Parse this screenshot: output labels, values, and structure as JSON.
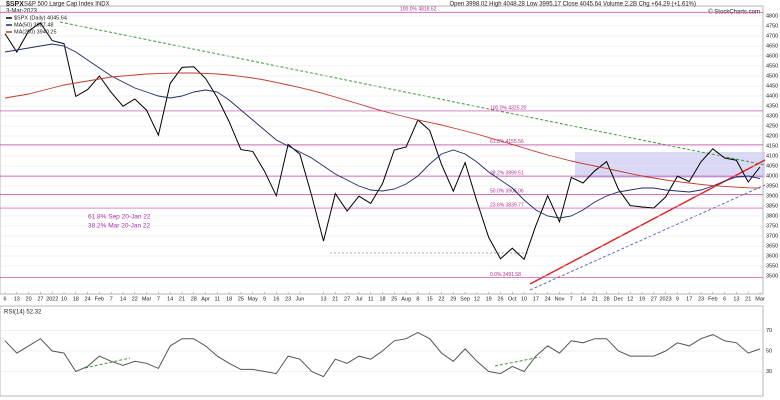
{
  "header": {
    "symbol": "$SPX",
    "name": "S&P 500 Large Cap Index INDX",
    "date": "3-Mar-2023",
    "quote": "Open 3998.02  High 4048.28  Low 3995.17  Close 4045.64  Volume 2.2B  Chg +64.29 (+1.61%)",
    "source": "© StockCharts.com"
  },
  "chart_data": [
    {
      "type": "line",
      "categories": [
        "6",
        "13",
        "20",
        "27",
        "2022",
        "10",
        "18",
        "24",
        "Feb",
        "7",
        "14",
        "22",
        "Mar",
        "7",
        "14",
        "21",
        "28",
        "Apr",
        "11",
        "18",
        "25",
        "May",
        "9",
        "16",
        "23",
        "Jun",
        null,
        "13",
        "21",
        "27",
        "Jul",
        "11",
        "18",
        "25",
        "Aug",
        "8",
        "15",
        "22",
        "29",
        "Sep",
        "12",
        "19",
        "26",
        "Oct",
        "10",
        "17",
        "24",
        "Nov",
        "7",
        "14",
        "21",
        "28",
        "Dec",
        "12",
        "19",
        "27",
        "2023",
        "9",
        "17",
        "23",
        "Feb",
        "6",
        "13",
        "21",
        "Mar"
      ],
      "series": [
        {
          "name": "$SPX (Daily) 4045.64",
          "color": "#000000",
          "values": [
            4712,
            4620,
            4725,
            4766,
            4677,
            4662,
            4398,
            4432,
            4500,
            4418,
            4349,
            4385,
            4329,
            4204,
            4463,
            4543,
            4546,
            4488,
            4392,
            4272,
            4132,
            4123,
            4024,
            3901,
            4158,
            4109,
            3901,
            3675,
            3912,
            3825,
            3899,
            3863,
            3962,
            4130,
            4145,
            4280,
            4228,
            4058,
            3924,
            4067,
            3873,
            3693,
            3586,
            3639,
            3583,
            3753,
            3901,
            3771,
            3993,
            3965,
            4026,
            4072,
            3934,
            3852,
            3845,
            3840,
            3895,
            3999,
            3972,
            4071,
            4136,
            4090,
            4079,
            3970,
            4045
          ]
        },
        {
          "name": "MA(50) 3987.48",
          "color": "#1f2a6b",
          "values": [
            4620,
            4630,
            4640,
            4650,
            4660,
            4650,
            4620,
            4580,
            4540,
            4500,
            4470,
            4440,
            4420,
            4400,
            4390,
            4400,
            4420,
            4430,
            4420,
            4380,
            4330,
            4280,
            4230,
            4180,
            4150,
            4120,
            4090,
            4050,
            4010,
            3980,
            3950,
            3930,
            3925,
            3935,
            3960,
            4000,
            4060,
            4110,
            4130,
            4110,
            4070,
            4020,
            3980,
            3940,
            3880,
            3830,
            3800,
            3790,
            3800,
            3830,
            3870,
            3900,
            3920,
            3930,
            3940,
            3940,
            3930,
            3925,
            3920,
            3930,
            3950,
            3975,
            3995,
            4000,
            3987
          ]
        },
        {
          "name": "MA(200) 3940.25",
          "color": "#c0392b",
          "values": [
            4390,
            4400,
            4410,
            4425,
            4440,
            4455,
            4465,
            4475,
            4485,
            4495,
            4500,
            4505,
            4510,
            4512,
            4514,
            4515,
            4515,
            4513,
            4510,
            4505,
            4498,
            4490,
            4480,
            4468,
            4455,
            4442,
            4428,
            4412,
            4395,
            4378,
            4360,
            4342,
            4325,
            4310,
            4295,
            4280,
            4268,
            4255,
            4240,
            4225,
            4210,
            4192,
            4175,
            4158,
            4140,
            4122,
            4105,
            4090,
            4075,
            4062,
            4050,
            4038,
            4025,
            4012,
            4000,
            3990,
            3980,
            3972,
            3965,
            3958,
            3952,
            3948,
            3944,
            3941,
            3940
          ]
        }
      ],
      "ylim": [
        3420,
        4840
      ],
      "yticks": [
        3500,
        3550,
        3600,
        3650,
        3700,
        3750,
        3800,
        3850,
        3900,
        3950,
        4000,
        4050,
        4100,
        4150,
        4200,
        4250,
        4300,
        4350,
        4400,
        4450,
        4500,
        4550,
        4600,
        4650,
        4700,
        4750,
        4800
      ],
      "grid": true,
      "levels": [
        {
          "value": 4818.62,
          "label": "100.0% 4818.62"
        },
        {
          "value": 4325.2,
          "label": "100.0% 4325.20"
        },
        {
          "value": 4155.56,
          "label": "61.8% 4155.56"
        },
        {
          "value": 3999.51,
          "label": "38.2% 3999.51"
        },
        {
          "value": 3908.06,
          "label": "50.0% 3908.06"
        },
        {
          "value": 3839.77,
          "label": "23.6% 3839.77"
        },
        {
          "value": 3491.58,
          "label": "0.0% 3491.58"
        }
      ],
      "notes": [
        "61.8% Sep 20-Jan 22",
        "38.2% Mar 20-Jan 22"
      ]
    },
    {
      "type": "line",
      "title": "RSI(14) 52.32",
      "ylim": [
        10,
        90
      ],
      "yticks": [
        30,
        50,
        70
      ],
      "grid": true,
      "series": [
        {
          "name": "RSI(14)",
          "color": "#555555",
          "values": [
            60,
            48,
            55,
            62,
            50,
            48,
            30,
            35,
            45,
            40,
            36,
            40,
            38,
            33,
            55,
            62,
            62,
            55,
            45,
            38,
            32,
            32,
            30,
            28,
            45,
            42,
            30,
            25,
            42,
            38,
            45,
            42,
            50,
            60,
            62,
            68,
            62,
            48,
            40,
            52,
            40,
            30,
            28,
            35,
            30,
            45,
            55,
            48,
            60,
            58,
            62,
            62,
            50,
            45,
            45,
            45,
            50,
            58,
            55,
            62,
            66,
            60,
            58,
            48,
            52
          ]
        }
      ]
    }
  ]
}
